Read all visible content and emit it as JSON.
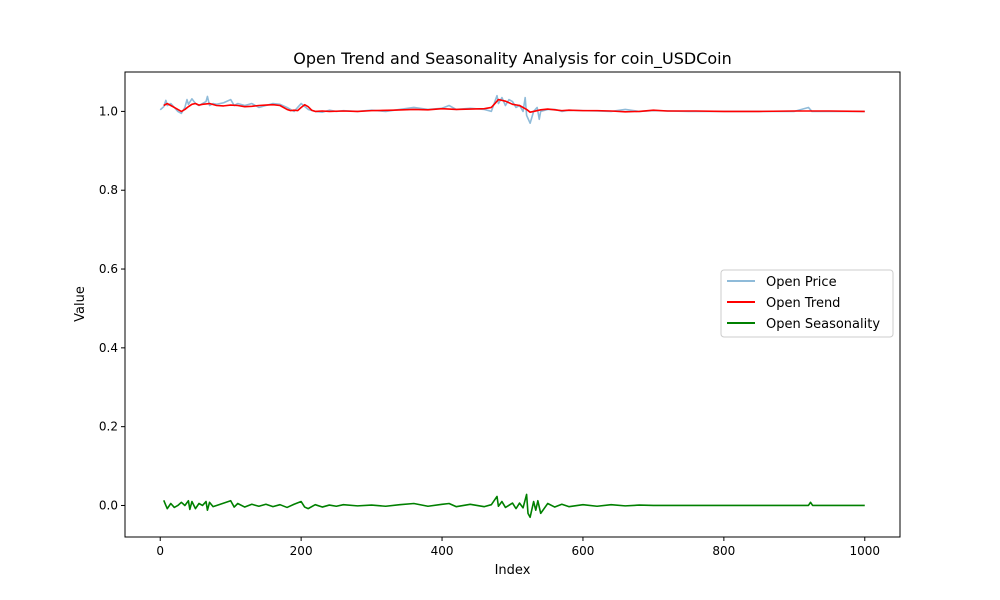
{
  "chart_data": {
    "type": "line",
    "title": "Open Trend and Seasonality Analysis for coin_USDCoin",
    "xlabel": "Index",
    "ylabel": "Value",
    "xlim": [
      -50,
      1050
    ],
    "ylim": [
      -0.08,
      1.1
    ],
    "xticks": [
      0,
      200,
      400,
      600,
      800,
      1000
    ],
    "xtick_labels": [
      "0",
      "200",
      "400",
      "600",
      "800",
      "1000"
    ],
    "yticks": [
      0.0,
      0.2,
      0.4,
      0.6,
      0.8,
      1.0
    ],
    "ytick_labels": [
      "0.0",
      "0.2",
      "0.4",
      "0.6",
      "0.8",
      "1.0"
    ],
    "grid": false,
    "legend_position": "center-right",
    "series": [
      {
        "name": "Open Price",
        "color": "#1f77b4",
        "opacity": 0.5,
        "x": [
          0,
          5,
          8,
          10,
          15,
          20,
          25,
          30,
          35,
          38,
          40,
          45,
          50,
          55,
          60,
          65,
          67,
          70,
          75,
          80,
          90,
          100,
          105,
          110,
          120,
          130,
          140,
          150,
          160,
          170,
          180,
          190,
          200,
          210,
          220,
          230,
          240,
          250,
          260,
          280,
          300,
          320,
          340,
          360,
          380,
          400,
          410,
          420,
          440,
          460,
          470,
          478,
          480,
          485,
          490,
          495,
          500,
          505,
          510,
          515,
          518,
          520,
          525,
          530,
          535,
          538,
          540,
          550,
          560,
          570,
          580,
          600,
          620,
          640,
          660,
          680,
          700,
          750,
          800,
          850,
          900,
          920,
          925,
          930,
          950,
          1000
        ],
        "y": [
          1.004,
          1.012,
          1.028,
          1.015,
          1.02,
          1.01,
          1.0,
          0.995,
          1.01,
          1.03,
          1.018,
          1.032,
          1.02,
          1.015,
          1.02,
          1.025,
          1.038,
          1.015,
          1.02,
          1.018,
          1.022,
          1.03,
          1.015,
          1.02,
          1.015,
          1.02,
          1.01,
          1.015,
          1.02,
          1.018,
          1.01,
          1.0,
          1.02,
          1.005,
          1.0,
          0.998,
          1.003,
          1.0,
          1.002,
          1.0,
          1.003,
          1.0,
          1.005,
          1.01,
          1.005,
          1.008,
          1.015,
          1.005,
          1.008,
          1.005,
          1.0,
          1.04,
          1.02,
          1.035,
          1.015,
          1.03,
          1.025,
          1.01,
          1.015,
          1.0,
          1.035,
          0.99,
          0.97,
          1.0,
          1.01,
          0.98,
          1.0,
          1.005,
          1.005,
          1.0,
          1.003,
          1.002,
          1.001,
          1.0,
          1.005,
          1.0,
          1.002,
          1.0,
          1.0,
          1.0,
          1.0,
          1.01,
          1.0,
          1.0,
          1.0,
          1.0
        ]
      },
      {
        "name": "Open Trend",
        "color": "#ff0000",
        "opacity": 1,
        "x": [
          5,
          10,
          15,
          20,
          25,
          30,
          35,
          40,
          45,
          50,
          55,
          60,
          70,
          80,
          90,
          100,
          110,
          120,
          130,
          140,
          150,
          160,
          170,
          180,
          185,
          190,
          195,
          200,
          205,
          210,
          215,
          220,
          230,
          240,
          260,
          280,
          300,
          330,
          360,
          380,
          400,
          420,
          440,
          460,
          470,
          475,
          480,
          485,
          490,
          500,
          510,
          520,
          525,
          530,
          540,
          550,
          560,
          570,
          580,
          600,
          620,
          640,
          660,
          680,
          700,
          720,
          760,
          800,
          850,
          900,
          950,
          1000
        ],
        "y": [
          1.015,
          1.02,
          1.015,
          1.01,
          1.005,
          1.0,
          1.005,
          1.012,
          1.018,
          1.02,
          1.016,
          1.018,
          1.02,
          1.015,
          1.014,
          1.016,
          1.015,
          1.012,
          1.013,
          1.015,
          1.016,
          1.017,
          1.015,
          1.005,
          1.002,
          1.003,
          1.002,
          1.01,
          1.017,
          1.012,
          1.003,
          1.0,
          1.001,
          1.0,
          1.001,
          1.0,
          1.002,
          1.003,
          1.005,
          1.004,
          1.007,
          1.005,
          1.006,
          1.007,
          1.01,
          1.02,
          1.03,
          1.028,
          1.026,
          1.018,
          1.015,
          1.005,
          0.998,
          1.0,
          1.004,
          1.006,
          1.004,
          1.002,
          1.003,
          1.002,
          1.002,
          1.001,
          0.999,
          1.0,
          1.003,
          1.001,
          1.001,
          1.0,
          1.0,
          1.001,
          1.001,
          1.0
        ]
      },
      {
        "name": "Open Seasonality",
        "color": "#008000",
        "opacity": 1,
        "x": [
          5,
          8,
          10,
          15,
          20,
          25,
          30,
          35,
          40,
          42,
          45,
          50,
          55,
          60,
          65,
          67,
          70,
          75,
          80,
          90,
          100,
          105,
          110,
          120,
          130,
          140,
          150,
          160,
          170,
          180,
          190,
          200,
          205,
          210,
          220,
          230,
          240,
          250,
          260,
          280,
          300,
          320,
          340,
          360,
          380,
          400,
          410,
          420,
          440,
          460,
          470,
          478,
          480,
          485,
          490,
          500,
          505,
          510,
          515,
          520,
          522,
          525,
          530,
          533,
          536,
          540,
          550,
          560,
          570,
          580,
          600,
          620,
          640,
          660,
          680,
          700,
          750,
          800,
          850,
          900,
          920,
          923,
          926,
          950,
          1000
        ],
        "y": [
          0.013,
          0.0,
          -0.008,
          0.005,
          -0.005,
          0.0,
          0.008,
          0.0,
          0.012,
          -0.01,
          0.01,
          -0.008,
          0.005,
          0.0,
          0.01,
          -0.012,
          0.008,
          -0.003,
          0.0,
          0.006,
          0.012,
          -0.004,
          0.005,
          -0.004,
          0.003,
          -0.002,
          0.003,
          -0.003,
          0.002,
          -0.005,
          0.003,
          0.01,
          -0.004,
          -0.008,
          0.002,
          -0.004,
          0.001,
          -0.002,
          0.002,
          -0.001,
          0.001,
          -0.002,
          0.002,
          0.005,
          -0.002,
          0.003,
          0.005,
          -0.003,
          0.003,
          -0.003,
          0.002,
          0.023,
          -0.002,
          0.01,
          -0.005,
          0.006,
          -0.008,
          0.006,
          -0.006,
          0.028,
          -0.02,
          -0.03,
          0.01,
          -0.012,
          0.012,
          -0.02,
          0.005,
          -0.004,
          0.003,
          -0.003,
          0.002,
          -0.002,
          0.002,
          -0.001,
          0.001,
          0.0,
          0.0,
          0.0,
          0.0,
          0.0,
          0.0,
          0.008,
          0.0,
          0.0,
          0.0
        ]
      }
    ]
  }
}
